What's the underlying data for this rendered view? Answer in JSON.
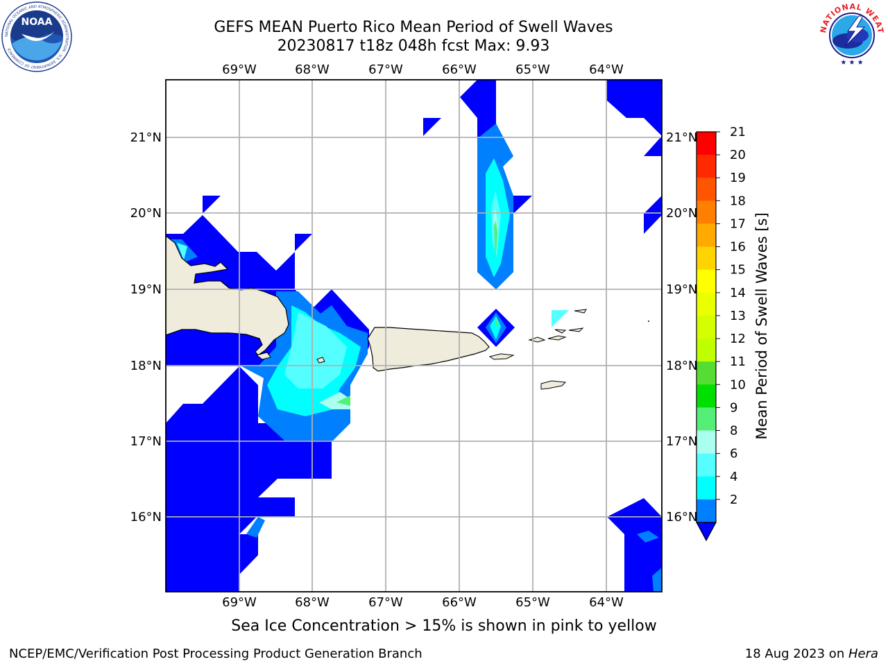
{
  "title": {
    "line1": "GEFS MEAN Puerto Rico Mean Period of Swell Waves",
    "line2": "20230817 t18z 048h fcst   Max: 9.93"
  },
  "caption": "Sea Ice Concentration > 15% is shown in pink to yellow",
  "footer": {
    "left": "NCEP/EMC/Verification Post Processing Product Generation Branch",
    "date": "18 Aug 2023 on ",
    "host": "Hera"
  },
  "logos": {
    "noaa": {
      "text": "NOAA",
      "ring_text": "NATIONAL OCEANIC AND ATMOSPHERIC ADMINISTRATION · U.S. DEPARTMENT OF COMMERCE"
    },
    "nws": {
      "ring_text": "NATIONAL WEATHER SERVICE"
    }
  },
  "map": {
    "lon_ticks": [
      "69°W",
      "68°W",
      "67°W",
      "66°W",
      "65°W",
      "64°W"
    ],
    "lat_ticks": [
      "21°N",
      "20°N",
      "19°N",
      "18°N",
      "17°N",
      "16°N"
    ],
    "land_color": "#efecdc",
    "ocean_color": "#ffffff",
    "grid_color": "#b0b0b0"
  },
  "colorbar": {
    "label": "Mean Period of Swell Waves [s]",
    "ticks": [
      "21",
      "20",
      "19",
      "18",
      "17",
      "16",
      "15",
      "14",
      "13",
      "12",
      "11",
      "10",
      "9",
      "8",
      "6",
      "4",
      "2"
    ],
    "colors": [
      "#ff0000",
      "#ff2a00",
      "#ff5500",
      "#ff8000",
      "#ffaa00",
      "#ffd400",
      "#ffff00",
      "#eaff00",
      "#d4ff00",
      "#bfff00",
      "#55dd33",
      "#00e000",
      "#55ee77",
      "#aaffee",
      "#55ffff",
      "#00ffff",
      "#0080ff"
    ],
    "extend_color": "#0000ff"
  }
}
